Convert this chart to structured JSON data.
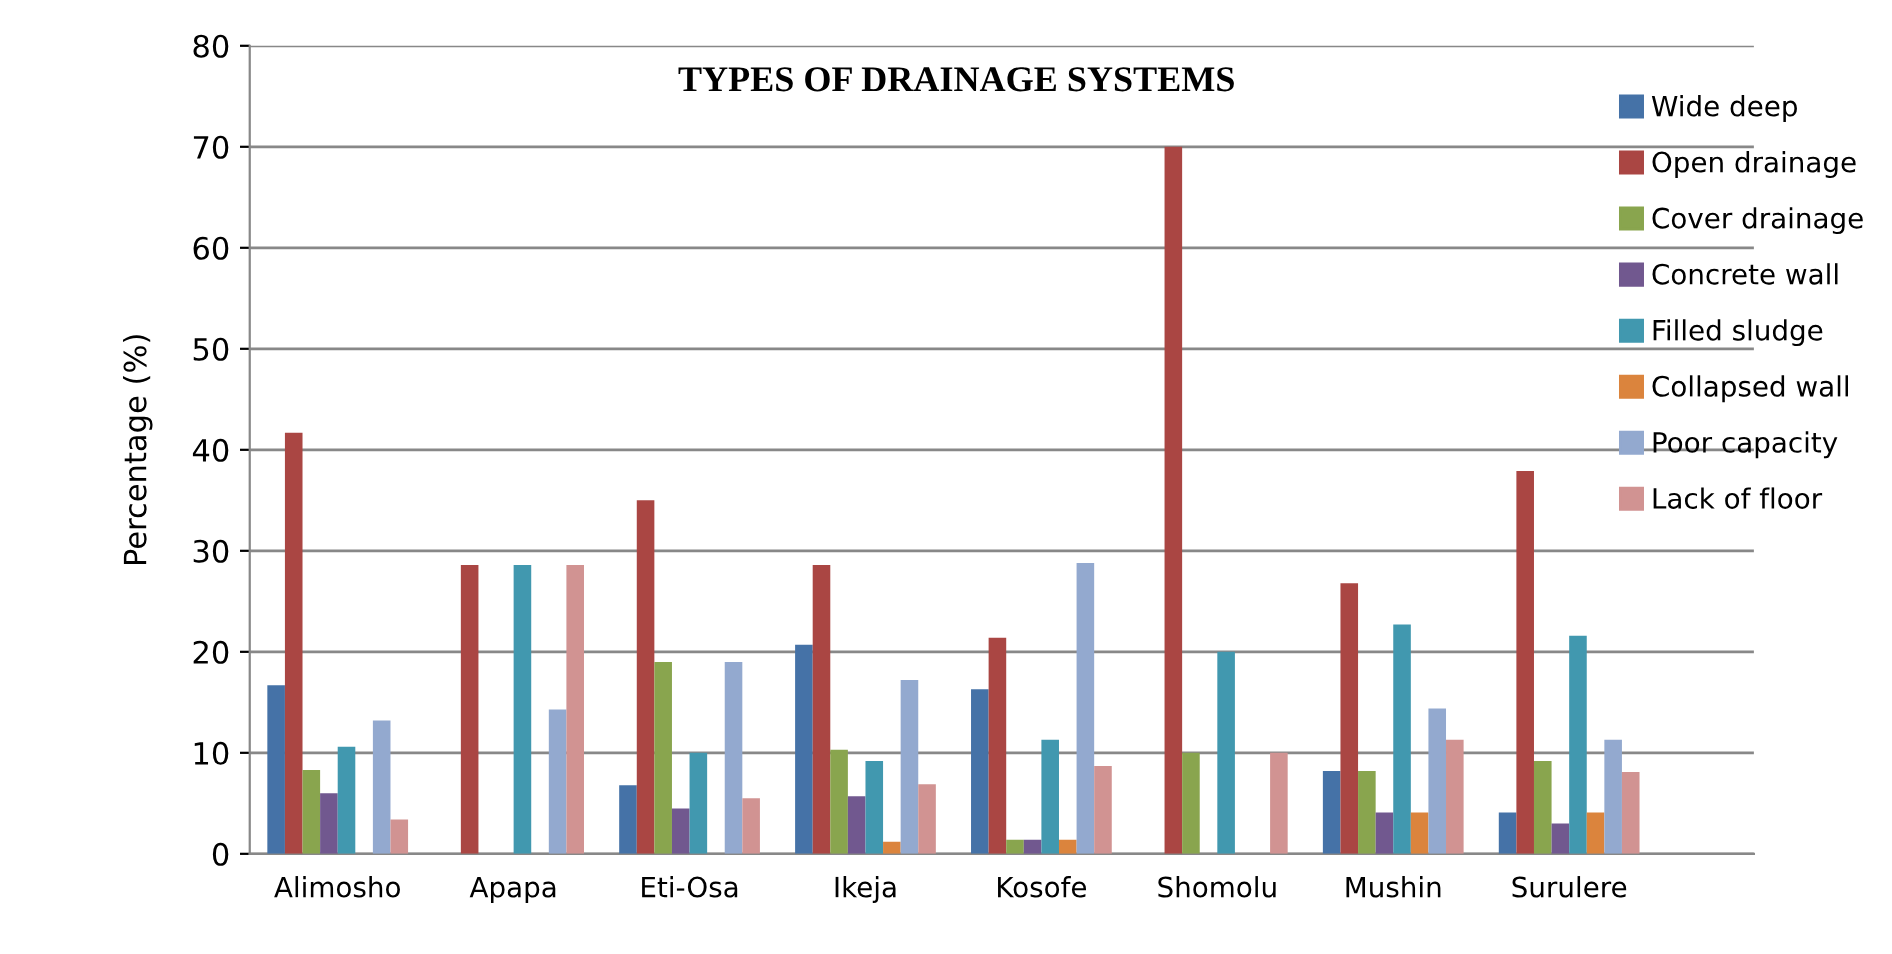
{
  "chart_data": {
    "type": "bar",
    "title": "TYPES OF DRAINAGE SYSTEMS",
    "ylabel": "Percentage (%)",
    "categories": [
      "Alimosho",
      "Apapa",
      "Eti-Osa",
      "Ikeja",
      "Kosofe",
      "Shomolu",
      "Mushin",
      "Surulere"
    ],
    "series": [
      {
        "name": "Wide deep",
        "color": "#4572a7",
        "values": [
          16.7,
          0,
          6.8,
          20.7,
          16.3,
          0,
          8.2,
          4.1
        ]
      },
      {
        "name": "Open drainage",
        "color": "#aa4643",
        "values": [
          41.7,
          28.6,
          35.0,
          28.6,
          21.4,
          70,
          26.8,
          37.9
        ]
      },
      {
        "name": "Cover drainage",
        "color": "#89a54e",
        "values": [
          8.3,
          0,
          19.0,
          10.3,
          1.4,
          10,
          8.2,
          9.2
        ]
      },
      {
        "name": "Concrete wall",
        "color": "#71588f",
        "values": [
          6.0,
          0,
          4.5,
          5.7,
          1.4,
          0,
          4.1,
          3.0
        ]
      },
      {
        "name": "Filled sludge",
        "color": "#4198af",
        "values": [
          10.6,
          28.6,
          10.0,
          9.2,
          11.3,
          20,
          22.7,
          21.6
        ]
      },
      {
        "name": "Collapsed wall",
        "color": "#db843d",
        "values": [
          0,
          0,
          0,
          1.2,
          1.4,
          0,
          4.1,
          4.1
        ]
      },
      {
        "name": "Poor capacity",
        "color": "#93a9cf",
        "values": [
          13.2,
          14.3,
          19.0,
          17.2,
          28.8,
          0,
          14.4,
          11.3
        ]
      },
      {
        "name": "Lack of floor",
        "color": "#d19392",
        "values": [
          3.4,
          28.6,
          5.5,
          6.9,
          8.7,
          10,
          11.3,
          8.1
        ]
      }
    ],
    "ylim": [
      0,
      80
    ],
    "yticks": [
      0,
      10,
      20,
      30,
      40,
      50,
      60,
      70,
      80
    ],
    "grid": "y",
    "legend": "right"
  }
}
